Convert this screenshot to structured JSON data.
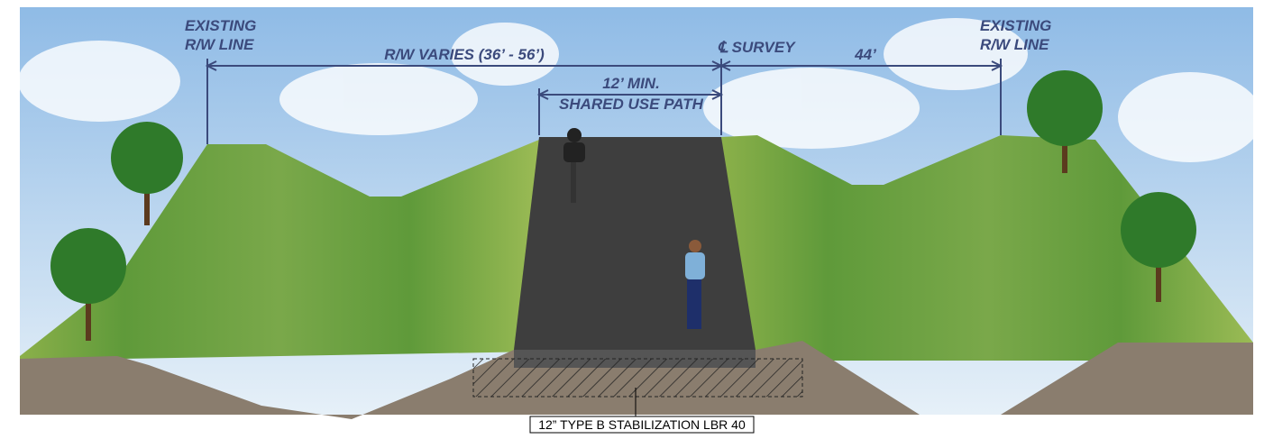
{
  "labels": {
    "left_rw": [
      "EXISTING",
      "R/W LINE"
    ],
    "rw_varies": "R/W VARIES (36’ - 56’)",
    "path_width": [
      "12’ MIN.",
      "SHARED USE PATH"
    ],
    "survey": "℄ SURVEY",
    "right_dim": "44’",
    "right_rw": [
      "EXISTING",
      "R/W LINE"
    ],
    "stabilization": "12” TYPE B STABILIZATION LBR 40"
  }
}
